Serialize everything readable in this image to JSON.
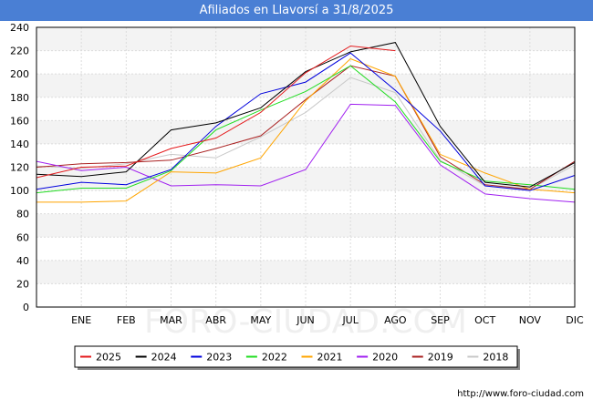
{
  "chart_data": {
    "type": "line",
    "title": "Afiliados en Llavorsí a 31/8/2025",
    "xlabel": "",
    "ylabel": "",
    "ylim": [
      0,
      240
    ],
    "yticks": [
      0,
      20,
      40,
      60,
      80,
      100,
      120,
      140,
      160,
      180,
      200,
      220,
      240
    ],
    "categories": [
      "",
      "ENE",
      "FEB",
      "MAR",
      "ABR",
      "MAY",
      "JUN",
      "JUL",
      "AGO",
      "SEP",
      "OCT",
      "NOV",
      "DIC"
    ],
    "series": [
      {
        "name": "2025",
        "color": "#e41a1c",
        "values": [
          111,
          120,
          121,
          136,
          145,
          167,
          201,
          224,
          220,
          null,
          null,
          null,
          null
        ]
      },
      {
        "name": "2024",
        "color": "#000000",
        "values": [
          114,
          112,
          116,
          152,
          158,
          171,
          202,
          219,
          227,
          155,
          107,
          103,
          124
        ]
      },
      {
        "name": "2023",
        "color": "#0000dd",
        "values": [
          101,
          107,
          105,
          118,
          155,
          183,
          193,
          218,
          186,
          151,
          104,
          100,
          113
        ]
      },
      {
        "name": "2022",
        "color": "#22dd22",
        "values": [
          98,
          102,
          102,
          117,
          152,
          169,
          185,
          207,
          176,
          125,
          108,
          105,
          101
        ]
      },
      {
        "name": "2021",
        "color": "#ffa500",
        "values": [
          90,
          90,
          91,
          116,
          115,
          128,
          177,
          213,
          198,
          131,
          115,
          101,
          98
        ]
      },
      {
        "name": "2020",
        "color": "#a020f0",
        "values": [
          125,
          117,
          120,
          104,
          105,
          104,
          118,
          174,
          173,
          122,
          97,
          93,
          90
        ]
      },
      {
        "name": "2019",
        "color": "#aa2222",
        "values": [
          120,
          123,
          124,
          126,
          136,
          147,
          178,
          207,
          198,
          129,
          105,
          101,
          125
        ]
      },
      {
        "name": "2018",
        "color": "#c8c8c8",
        "values": [
          121,
          119,
          123,
          131,
          128,
          146,
          167,
          197,
          184,
          126,
          104,
          101,
          122
        ]
      }
    ]
  },
  "watermark_text": "FORO-CIUDAD.COM",
  "source_text": "http://www.foro-ciudad.com"
}
